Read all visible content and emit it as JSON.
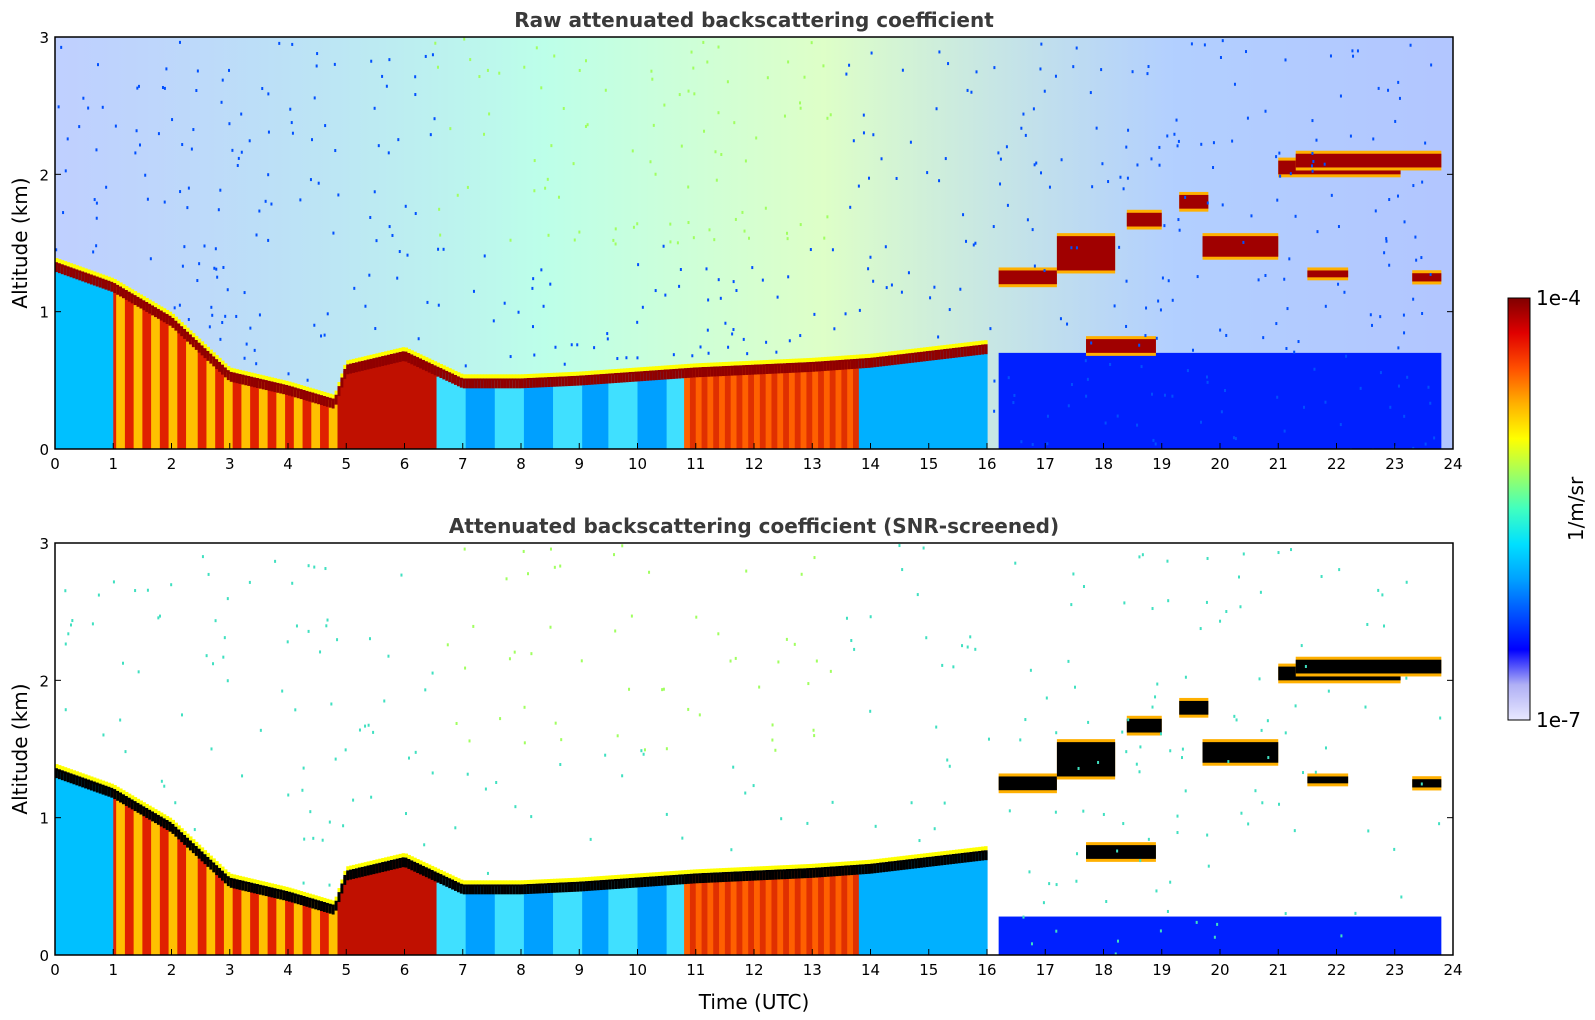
{
  "chart_data": [
    {
      "type": "heatmap",
      "title": "Raw attenuated backscattering coefficient",
      "xlabel": "",
      "ylabel": "Altitude (km)",
      "xlim": [
        0,
        24
      ],
      "ylim": [
        0,
        3
      ],
      "xticks": [
        0,
        1,
        2,
        3,
        4,
        5,
        6,
        7,
        8,
        9,
        10,
        11,
        12,
        13,
        14,
        15,
        16,
        17,
        18,
        19,
        20,
        21,
        22,
        23,
        24
      ],
      "yticks": [
        0,
        1,
        2,
        3
      ],
      "boundary_layer_top_km": [
        {
          "t": 0,
          "z": 1.35
        },
        {
          "t": 1,
          "z": 1.2
        },
        {
          "t": 2,
          "z": 0.95
        },
        {
          "t": 3,
          "z": 0.55
        },
        {
          "t": 4,
          "z": 0.45
        },
        {
          "t": 4.8,
          "z": 0.35
        },
        {
          "t": 5,
          "z": 0.6
        },
        {
          "t": 6,
          "z": 0.7
        },
        {
          "t": 7,
          "z": 0.5
        },
        {
          "t": 8,
          "z": 0.5
        },
        {
          "t": 9,
          "z": 0.52
        },
        {
          "t": 10,
          "z": 0.55
        },
        {
          "t": 11,
          "z": 0.58
        },
        {
          "t": 12,
          "z": 0.6
        },
        {
          "t": 13,
          "z": 0.62
        },
        {
          "t": 14,
          "z": 0.65
        },
        {
          "t": 15,
          "z": 0.7
        },
        {
          "t": 16,
          "z": 0.75
        }
      ],
      "cloud_layers": [
        {
          "t0": 16.2,
          "t1": 17.2,
          "z0": 1.2,
          "z1": 1.3
        },
        {
          "t0": 17.2,
          "t1": 18.2,
          "z0": 1.3,
          "z1": 1.55
        },
        {
          "t0": 18.4,
          "t1": 19.0,
          "z0": 1.62,
          "z1": 1.72
        },
        {
          "t0": 19.3,
          "t1": 19.8,
          "z0": 1.75,
          "z1": 1.85
        },
        {
          "t0": 19.7,
          "t1": 21.0,
          "z0": 1.4,
          "z1": 1.55
        },
        {
          "t0": 21.0,
          "t1": 23.1,
          "z0": 2.0,
          "z1": 2.1
        },
        {
          "t0": 21.3,
          "t1": 23.8,
          "z0": 2.05,
          "z1": 2.15
        },
        {
          "t0": 17.7,
          "t1": 18.9,
          "z0": 0.7,
          "z1": 0.8
        },
        {
          "t0": 21.5,
          "t1": 22.2,
          "z0": 1.25,
          "z1": 1.3
        },
        {
          "t0": 23.3,
          "t1": 23.8,
          "z0": 1.22,
          "z1": 1.28
        }
      ]
    },
    {
      "type": "heatmap",
      "title": "Attenuated backscattering coefficient (SNR-screened)",
      "xlabel": "Time (UTC)",
      "ylabel": "Altitude (km)",
      "xlim": [
        0,
        24
      ],
      "ylim": [
        0,
        3
      ],
      "xticks": [
        0,
        1,
        2,
        3,
        4,
        5,
        6,
        7,
        8,
        9,
        10,
        11,
        12,
        13,
        14,
        15,
        16,
        17,
        18,
        19,
        20,
        21,
        22,
        23,
        24
      ],
      "yticks": [
        0,
        1,
        2,
        3
      ]
    }
  ],
  "colorbar": {
    "label": "1/m/sr",
    "max_label": "1e-4",
    "min_label": "1e-7",
    "colormap": [
      "#e8e8ff",
      "#b0b0f5",
      "#0000ff",
      "#0050ff",
      "#00a0ff",
      "#00e0ff",
      "#40ffc0",
      "#a0ff60",
      "#ffff00",
      "#ffb000",
      "#ff5000",
      "#e00000",
      "#800000"
    ]
  }
}
